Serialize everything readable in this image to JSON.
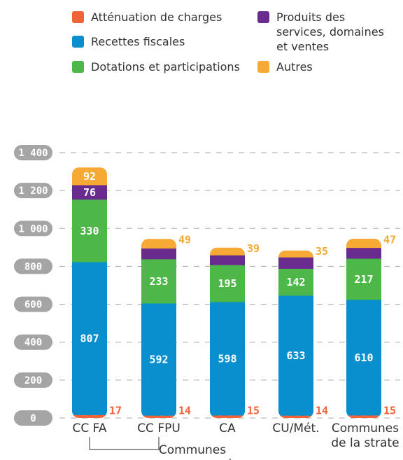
{
  "chart_data": {
    "type": "stacked-bar",
    "categories": [
      "CC FA",
      "CC FPU",
      "CA",
      "CU/Mét.",
      "Communes de la strate"
    ],
    "group_label": "Communes appartenant à",
    "series": [
      {
        "name": "Atténuation de charges",
        "color": "#ef6439",
        "values": [
          17,
          14,
          15,
          14,
          15
        ]
      },
      {
        "name": "Recettes fiscales",
        "color": "#0a8fce",
        "values": [
          807,
          592,
          598,
          633,
          610
        ]
      },
      {
        "name": "Dotations et participations",
        "color": "#4db848",
        "values": [
          330,
          233,
          195,
          142,
          217
        ]
      },
      {
        "name": "Produits des services, domaines et ventes",
        "color": "#6a2b8f",
        "values": [
          76,
          57,
          52,
          60,
          57
        ]
      },
      {
        "name": "Autres",
        "color": "#f6a935",
        "values": [
          92,
          49,
          39,
          35,
          47
        ]
      }
    ],
    "ylim": [
      0,
      1400
    ],
    "yticks": [
      0,
      200,
      400,
      600,
      800,
      {
        "value": 1000,
        "label": "1 000"
      },
      {
        "value": 1200,
        "label": "1 200"
      },
      {
        "value": 1400,
        "label": "1 400"
      }
    ],
    "grid": true
  }
}
